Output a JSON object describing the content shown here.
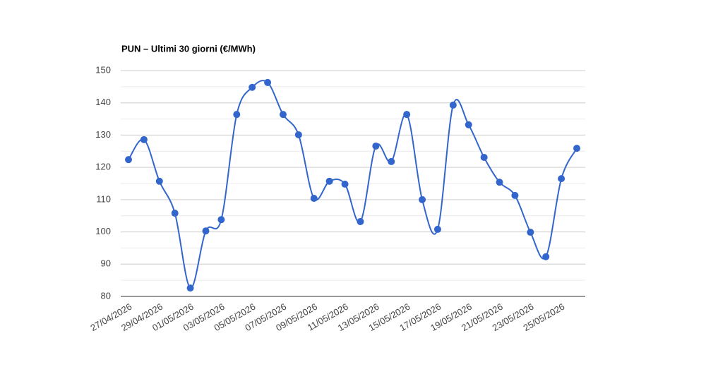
{
  "chart_data": {
    "type": "line",
    "title": "PUN – Ultimi 30 giorni (€/MWh)",
    "categories": [
      "27/04/2026",
      null,
      "29/04/2026",
      null,
      "01/05/2026",
      null,
      "03/05/2026",
      null,
      "05/05/2026",
      null,
      "07/05/2026",
      null,
      "09/05/2026",
      null,
      "11/05/2026",
      null,
      "13/05/2026",
      null,
      "15/05/2026",
      null,
      "17/05/2026",
      null,
      "19/05/2026",
      null,
      "21/05/2026",
      null,
      "23/05/2026",
      null,
      "25/05/2026",
      null
    ],
    "series": [
      {
        "color": "#3366cc",
        "values": [
          122.4,
          128.6,
          115.7,
          105.8,
          82.6,
          100.3,
          103.8,
          136.4,
          144.8,
          146.3,
          136.4,
          130.1,
          110.4,
          115.7,
          114.8,
          103.2,
          126.6,
          121.8,
          136.4,
          110,
          100.8,
          139.3,
          133.2,
          123.1,
          115.4,
          111.3,
          99.9,
          92.3,
          116.5,
          125.9
        ]
      }
    ],
    "ylim": [
      80,
      150
    ],
    "yticks": [
      80,
      90,
      100,
      110,
      120,
      130,
      140,
      150
    ],
    "grid": true
  }
}
